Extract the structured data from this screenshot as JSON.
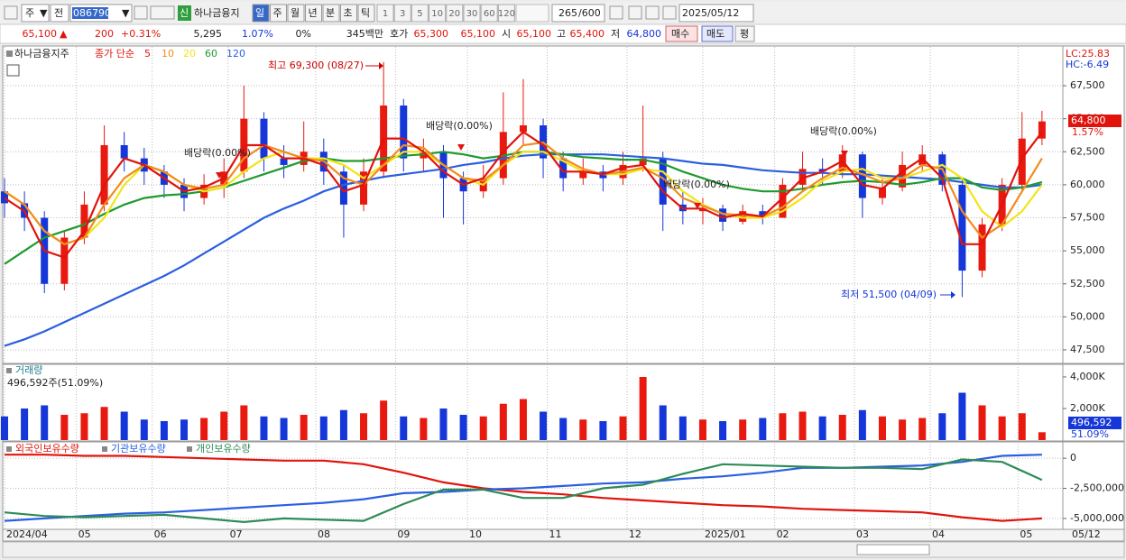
{
  "toolbar": {
    "period_type": "주",
    "market": "전",
    "code": "086790",
    "new_badge": "신",
    "name": "하나금융지",
    "periods": [
      "일",
      "주",
      "월",
      "년",
      "분",
      "초",
      "틱"
    ],
    "intervals": [
      "1",
      "3",
      "5",
      "10",
      "20",
      "30",
      "60",
      "120"
    ],
    "count": "265",
    "max": "/600",
    "date": "2025/05/12"
  },
  "quote_bar": {
    "price": "65,100",
    "direction": "▲",
    "change": "200",
    "change_pct": "+0.31%",
    "volume_k": "5,295",
    "turnover": "1.07%",
    "ratio": "0%",
    "amount": "345백만",
    "ask_label": "호가",
    "ask": "65,300",
    "bid": "65,100",
    "open_label": "시",
    "open": "65,100",
    "high_label": "고",
    "high": "65,400",
    "low_label": "저",
    "low": "64,800",
    "buy": "매수",
    "sell": "매도",
    "avg": "평"
  },
  "chart_data": [
    {
      "type": "candlestick",
      "stock": "하나금융지주",
      "ma_label": "종가 단순",
      "up_color": "#e8190f",
      "down_color": "#1536d8",
      "x": [
        0,
        5,
        10,
        15,
        20,
        25,
        30,
        35,
        40,
        45,
        50,
        55,
        60,
        65,
        70,
        75,
        80,
        85,
        90,
        95,
        100,
        105,
        110,
        115,
        120,
        125,
        130,
        135,
        140,
        145,
        150,
        155,
        160,
        165,
        170,
        175,
        180,
        185,
        190,
        195,
        200,
        205,
        210,
        215,
        220,
        225,
        230,
        235,
        240,
        245,
        250,
        255,
        260
      ],
      "open": [
        59500,
        58600,
        57500,
        52500,
        56000,
        58500,
        63000,
        62000,
        61000,
        60000,
        59000,
        60000,
        61000,
        65000,
        62000,
        61500,
        62500,
        61000,
        58500,
        61000,
        66000,
        62000,
        62500,
        60500,
        59500,
        60500,
        64000,
        64500,
        62000,
        60500,
        61000,
        60500,
        61500,
        62000,
        58500,
        58000,
        58200,
        57200,
        58000,
        57500,
        60000,
        61200,
        61000,
        62300,
        59000,
        59800,
        61500,
        62300,
        60000,
        53500,
        57000,
        60000,
        63500
      ],
      "high": [
        60500,
        59500,
        58000,
        56500,
        59500,
        64500,
        64000,
        62800,
        61500,
        60500,
        60800,
        62000,
        67500,
        65500,
        63000,
        64800,
        63500,
        61500,
        62000,
        69300,
        66500,
        63500,
        63000,
        61000,
        61500,
        67000,
        68000,
        65000,
        62500,
        62000,
        61500,
        62500,
        66000,
        62500,
        59500,
        59000,
        58500,
        58500,
        58500,
        60500,
        62500,
        62000,
        63000,
        62500,
        60500,
        62500,
        63000,
        62500,
        60500,
        57500,
        60500,
        65500,
        65600
      ],
      "low": [
        57500,
        56500,
        51800,
        52000,
        55500,
        58000,
        61000,
        60000,
        59000,
        58000,
        58500,
        59000,
        60500,
        61000,
        60500,
        61000,
        60000,
        56000,
        58000,
        60500,
        61000,
        61000,
        57500,
        57000,
        59000,
        60000,
        63000,
        60500,
        59500,
        60000,
        59500,
        60000,
        61000,
        56500,
        57000,
        57000,
        56500,
        57000,
        57000,
        57500,
        59500,
        60000,
        60500,
        57500,
        58500,
        59500,
        61000,
        59500,
        51500,
        53000,
        56500,
        59500,
        63000
      ],
      "close": [
        58600,
        57500,
        52500,
        56000,
        58500,
        63000,
        62000,
        61000,
        60000,
        59000,
        60000,
        61000,
        65000,
        62000,
        61500,
        62500,
        61000,
        58500,
        61000,
        66000,
        62000,
        62500,
        60500,
        59500,
        60500,
        64000,
        64500,
        62000,
        60500,
        61000,
        60500,
        61500,
        62000,
        58500,
        58000,
        58200,
        57200,
        58000,
        57500,
        60000,
        61200,
        61000,
        62300,
        59000,
        59800,
        61500,
        62300,
        60000,
        53500,
        57000,
        60000,
        63500,
        64800
      ],
      "series": [
        {
          "name": "5",
          "color": "#e0140c",
          "values": [
            59000,
            58000,
            55000,
            54500,
            56500,
            60000,
            62000,
            61500,
            60500,
            59500,
            59800,
            60500,
            63000,
            63000,
            62000,
            62000,
            61500,
            59500,
            60000,
            63500,
            63500,
            62500,
            61000,
            60000,
            60500,
            62500,
            64000,
            63000,
            61000,
            61000,
            60800,
            61300,
            61500,
            59500,
            58200,
            58200,
            57500,
            57800,
            57600,
            59000,
            60500,
            61000,
            61800,
            60000,
            59700,
            61000,
            62000,
            60500,
            55500,
            55500,
            58500,
            62000,
            64000
          ]
        },
        {
          "name": "10",
          "color": "#f08c1e",
          "values": [
            59500,
            58500,
            56500,
            55500,
            56000,
            58500,
            60500,
            61500,
            61000,
            60000,
            59700,
            60000,
            62000,
            63000,
            62500,
            62000,
            61800,
            60500,
            60000,
            61500,
            63000,
            62800,
            61500,
            60500,
            60300,
            61500,
            63000,
            63200,
            62000,
            61200,
            60800,
            61000,
            61300,
            60500,
            59000,
            58400,
            57800,
            57700,
            57600,
            58300,
            59500,
            60500,
            61300,
            60800,
            60200,
            60500,
            61500,
            61200,
            58000,
            56000,
            57000,
            59500,
            62000
          ]
        },
        {
          "name": "20",
          "color": "#f2e418",
          "values": [
            59500,
            58500,
            56500,
            55500,
            56000,
            57500,
            60000,
            61500,
            61000,
            60000,
            59500,
            59800,
            61000,
            62000,
            62500,
            62000,
            62000,
            61500,
            60500,
            61500,
            62500,
            62500,
            61500,
            60500,
            60000,
            61500,
            62500,
            62500,
            61800,
            61000,
            60800,
            60800,
            61200,
            61000,
            59500,
            58500,
            57800,
            57500,
            57500,
            58000,
            59000,
            60300,
            61000,
            61200,
            60500,
            60500,
            61000,
            61500,
            60500,
            58000,
            56800,
            58000,
            60000
          ]
        },
        {
          "name": "60",
          "color": "#1e9a2e",
          "values": [
            54000,
            55000,
            56000,
            56500,
            57000,
            57800,
            58500,
            59000,
            59200,
            59300,
            59500,
            59800,
            60300,
            60800,
            61300,
            61800,
            62000,
            61800,
            61800,
            62000,
            62200,
            62300,
            62500,
            62300,
            62000,
            62200,
            62500,
            62500,
            62300,
            62100,
            62000,
            61900,
            61900,
            61600,
            61000,
            60500,
            60000,
            59700,
            59500,
            59500,
            59700,
            60000,
            60200,
            60300,
            60200,
            60000,
            60200,
            60500,
            60500,
            59800,
            59600,
            59800,
            60200
          ]
        },
        {
          "name": "120",
          "color": "#2a5fe0",
          "values": [
            47800,
            48300,
            48900,
            49600,
            50300,
            51000,
            51700,
            52400,
            53100,
            53900,
            54800,
            55700,
            56600,
            57500,
            58200,
            58800,
            59500,
            60000,
            60300,
            60600,
            60800,
            61000,
            61200,
            61500,
            61700,
            62000,
            62200,
            62300,
            62300,
            62300,
            62300,
            62200,
            62100,
            62000,
            61800,
            61600,
            61500,
            61300,
            61100,
            61000,
            60900,
            60900,
            60800,
            60800,
            60700,
            60600,
            60500,
            60400,
            60200,
            60000,
            59800,
            59800,
            60000
          ]
        }
      ],
      "ylim": [
        46475,
        70440
      ],
      "yticks": [
        {
          "value": 47500,
          "label": "47,500"
        },
        {
          "value": 50000,
          "label": "50,000"
        },
        {
          "value": 52500,
          "label": "52,500"
        },
        {
          "value": 55000,
          "label": "55,000"
        },
        {
          "value": 57500,
          "label": "57,500"
        },
        {
          "value": 60000,
          "label": "60,000"
        },
        {
          "value": 62500,
          "label": "62,500"
        },
        {
          "value": 65000,
          "label": "65,000"
        },
        {
          "value": 67500,
          "label": "67,500"
        }
      ],
      "xlim": [
        0,
        265
      ],
      "xticks": [
        {
          "value": 0,
          "label": "2024/04"
        },
        {
          "value": 18,
          "label": "05"
        },
        {
          "value": 37,
          "label": "06"
        },
        {
          "value": 56,
          "label": "07"
        },
        {
          "value": 78,
          "label": "08"
        },
        {
          "value": 98,
          "label": "09"
        },
        {
          "value": 116,
          "label": "10"
        },
        {
          "value": 136,
          "label": "11"
        },
        {
          "value": 156,
          "label": "12"
        },
        {
          "value": 175,
          "label": "2025/01"
        },
        {
          "value": 193,
          "label": "02"
        },
        {
          "value": 213,
          "label": "03"
        },
        {
          "value": 232,
          "label": "04"
        },
        {
          "value": 254,
          "label": "05"
        }
      ],
      "x_end_label": "05/12",
      "grid": true,
      "lc_label": "LC:25.83",
      "hc_label": "HC:-6.49",
      "last_label": "64,800",
      "last_change": "1.57%",
      "annotations": {
        "high": "최고 69,300 (08/27)",
        "low": "최저 51,500 (04/09)",
        "dividend": [
          "배당락(0.00%)",
          "배당락(0.00%)",
          "배당락(0.00%)",
          "배당락(0.00%)"
        ]
      }
    },
    {
      "type": "bar",
      "title": "거래량",
      "info": "496,592주(51.09%)",
      "x": [
        0,
        5,
        10,
        15,
        20,
        25,
        30,
        35,
        40,
        45,
        50,
        55,
        60,
        65,
        70,
        75,
        80,
        85,
        90,
        95,
        100,
        105,
        110,
        115,
        120,
        125,
        130,
        135,
        140,
        145,
        150,
        155,
        160,
        165,
        170,
        175,
        180,
        185,
        190,
        195,
        200,
        205,
        210,
        215,
        220,
        225,
        230,
        235,
        240,
        245,
        250,
        255,
        260
      ],
      "values": [
        1500000,
        2000000,
        2200000,
        1600000,
        1700000,
        2100000,
        1800000,
        1300000,
        1200000,
        1300000,
        1400000,
        1800000,
        2200000,
        1500000,
        1400000,
        1600000,
        1500000,
        1900000,
        1700000,
        2500000,
        1500000,
        1400000,
        2000000,
        1600000,
        1500000,
        2300000,
        2600000,
        1800000,
        1400000,
        1300000,
        1200000,
        1500000,
        4000000,
        2200000,
        1500000,
        1300000,
        1200000,
        1300000,
        1400000,
        1700000,
        1800000,
        1500000,
        1600000,
        1900000,
        1500000,
        1300000,
        1400000,
        1700000,
        3000000,
        2200000,
        1500000,
        1700000,
        496592
      ],
      "ylim": [
        0,
        4800000
      ],
      "yticks": [
        {
          "value": 2000000,
          "label": "2,000K"
        },
        {
          "value": 4000000,
          "label": "4,000K"
        }
      ],
      "last_label": "496,592",
      "last_pct": "51.09%"
    },
    {
      "type": "line",
      "x": [
        0,
        10,
        20,
        30,
        40,
        50,
        60,
        70,
        80,
        90,
        100,
        110,
        120,
        130,
        140,
        150,
        160,
        170,
        180,
        190,
        200,
        210,
        220,
        230,
        240,
        250,
        260
      ],
      "series": [
        {
          "name": "외국인보유수량",
          "color": "#e0140c",
          "values": [
            300000,
            300000,
            200000,
            200000,
            100000,
            0,
            -100000,
            -200000,
            -200000,
            -500000,
            -1200000,
            -2000000,
            -2500000,
            -2800000,
            -3000000,
            -3300000,
            -3500000,
            -3700000,
            -3900000,
            -4000000,
            -4200000,
            -4300000,
            -4400000,
            -4500000,
            -4900000,
            -5200000,
            -5000000
          ]
        },
        {
          "name": "기관보유수량",
          "color": "#2a5fe0",
          "values": [
            -5200000,
            -5000000,
            -4800000,
            -4600000,
            -4500000,
            -4300000,
            -4100000,
            -3900000,
            -3700000,
            -3400000,
            -2900000,
            -2800000,
            -2600000,
            -2500000,
            -2300000,
            -2100000,
            -2000000,
            -1700000,
            -1500000,
            -1200000,
            -800000,
            -800000,
            -700000,
            -600000,
            -300000,
            200000,
            300000
          ]
        },
        {
          "name": "개인보유수량",
          "color": "#2e8b57",
          "values": [
            -4500000,
            -4800000,
            -4900000,
            -4800000,
            -4700000,
            -5000000,
            -5300000,
            -5000000,
            -5100000,
            -5200000,
            -3800000,
            -2600000,
            -2600000,
            -3300000,
            -3300000,
            -2500000,
            -2200000,
            -1300000,
            -500000,
            -600000,
            -700000,
            -800000,
            -800000,
            -900000,
            -100000,
            -300000,
            -1800000
          ]
        }
      ],
      "ylim": [
        -5830000,
        1210000
      ],
      "yticks": [
        {
          "value": -5000000,
          "label": "-5,000,000"
        },
        {
          "value": -2500000,
          "label": "-2,500,000"
        },
        0
      ]
    }
  ]
}
